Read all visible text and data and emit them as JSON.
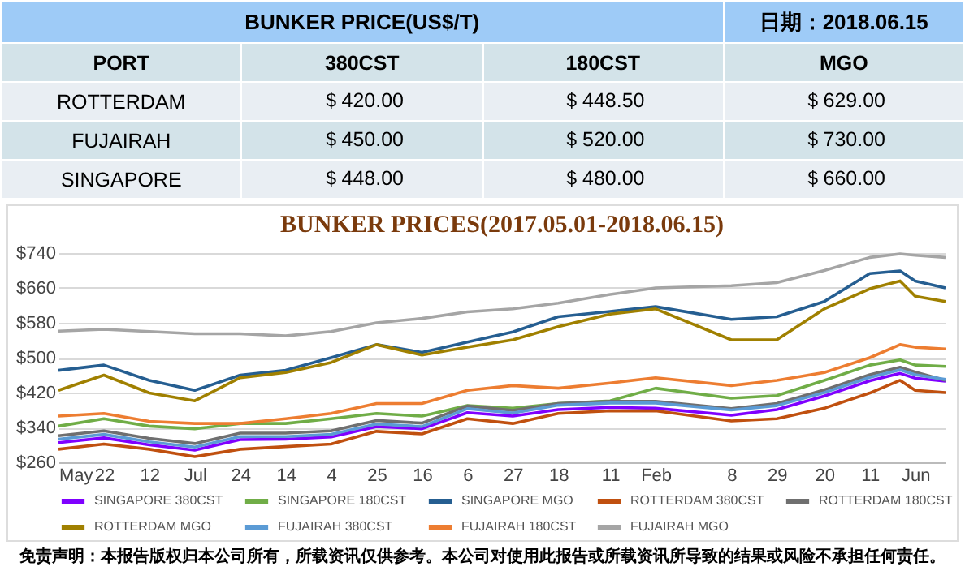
{
  "chart_data": [
    {
      "type": "other",
      "title": "BUNKER  PRICE(US$/T)",
      "subtitle": "日期：2018.06.15",
      "xlabel": "PORT",
      "categories": [
        "ROTTERDAM",
        "FUJAIRAH",
        "SINGAPORE"
      ],
      "series": [
        {
          "name": "380CST",
          "colors": [
            "#e9eef3",
            "#d3e3e9",
            "#e9eef3"
          ],
          "values": [
            420,
            450,
            448
          ],
          "value_labels": [
            "＄420.00",
            "＄450.00",
            "＄448.00"
          ]
        },
        {
          "name": "180CST",
          "colors": [
            "#e9eef3",
            "#d3e3e9",
            "#e9eef3"
          ],
          "values": [
            448.5,
            520,
            480
          ],
          "value_labels": [
            "＄448.50",
            "＄520.00",
            "＄480.00"
          ]
        },
        {
          "name": "MGO",
          "colors": [
            "#e9eef3",
            "#d3e3e9",
            "#e9eef3"
          ],
          "values": [
            629,
            730,
            660
          ],
          "value_labels": [
            "＄629.00",
            "＄730.00",
            "＄660.00"
          ]
        }
      ]
    },
    {
      "type": "line",
      "title": "BUNKER PRICES(2017.05.01-2018.06.15)",
      "x": [
        "2017-05-01",
        "2017-05-22",
        "2017-06-12",
        "2017-07-03",
        "2017-07-24",
        "2017-08-14",
        "2017-09-04",
        "2017-09-25",
        "2017-10-16",
        "2017-11-06",
        "2017-11-27",
        "2017-12-18",
        "2018-01-11",
        "2018-02-01",
        "2018-03-08",
        "2018-03-29",
        "2018-04-20",
        "2018-05-11",
        "2018-05-25",
        "2018-06-01",
        "2018-06-15"
      ],
      "series": [
        {
          "name": "SINGAPORE 380CST",
          "color": "#7f00ff",
          "values": [
            305,
            316,
            300,
            288,
            312,
            313,
            318,
            342,
            337,
            374,
            366,
            381,
            386,
            384,
            368,
            381,
            412,
            447,
            464,
            453,
            446
          ]
        },
        {
          "name": "SINGAPORE 180CST",
          "color": "#70ad47",
          "values": [
            343,
            360,
            343,
            337,
            349,
            349,
            360,
            372,
            366,
            390,
            384,
            395,
            401,
            430,
            407,
            413,
            448,
            483,
            495,
            483,
            480
          ]
        },
        {
          "name": "SINGAPORE MGO",
          "color": "#255e91",
          "values": [
            471,
            483,
            448,
            425,
            460,
            471,
            500,
            530,
            512,
            536,
            559,
            594,
            606,
            617,
            588,
            594,
            629,
            693,
            699,
            676,
            660
          ]
        },
        {
          "name": "ROTTERDAM 380CST",
          "color": "#c0500f",
          "values": [
            290,
            302,
            290,
            273,
            290,
            296,
            302,
            331,
            325,
            360,
            349,
            372,
            378,
            378,
            355,
            360,
            384,
            419,
            448,
            425,
            420
          ]
        },
        {
          "name": "ROTTERDAM 180CST",
          "color": "#6f6f6f",
          "values": [
            321,
            332,
            315,
            303,
            327,
            327,
            332,
            356,
            350,
            389,
            379,
            395,
            400,
            400,
            383,
            395,
            426,
            461,
            478,
            467,
            448
          ]
        },
        {
          "name": "ROTTERDAM MGO",
          "color": "#a08000",
          "values": [
            425,
            460,
            419,
            401,
            454,
            466,
            489,
            530,
            506,
            524,
            541,
            571,
            600,
            612,
            541,
            541,
            612,
            658,
            676,
            641,
            629
          ]
        },
        {
          "name": "FUJAIRAH 380CST",
          "color": "#5b9bd5",
          "values": [
            313,
            324,
            307,
            295,
            319,
            319,
            324,
            348,
            342,
            383,
            373,
            391,
            396,
            396,
            380,
            390,
            420,
            455,
            472,
            461,
            450
          ]
        },
        {
          "name": "FUJAIRAH 180CST",
          "color": "#ed7d31",
          "values": [
            366,
            372,
            354,
            349,
            349,
            360,
            372,
            395,
            395,
            425,
            436,
            430,
            442,
            454,
            436,
            448,
            466,
            500,
            530,
            524,
            520
          ]
        },
        {
          "name": "FUJAIRAH MGO",
          "color": "#a5a5a5",
          "values": [
            561,
            565,
            560,
            555,
            555,
            550,
            560,
            580,
            590,
            605,
            612,
            625,
            645,
            660,
            665,
            672,
            700,
            730,
            738,
            735,
            730
          ]
        }
      ],
      "xlim": [
        "2017-05-01",
        "2018-06-15"
      ],
      "xticks": [
        {
          "value": "2017-05-01",
          "label": "May"
        },
        {
          "value": "2017-05-22",
          "label": "22"
        },
        {
          "value": "2017-06-12",
          "label": "12"
        },
        {
          "value": "2017-07-03",
          "label": "Jul"
        },
        {
          "value": "2017-07-24",
          "label": "24"
        },
        {
          "value": "2017-08-14",
          "label": "14"
        },
        {
          "value": "2017-09-04",
          "label": "4"
        },
        {
          "value": "2017-09-25",
          "label": "25"
        },
        {
          "value": "2017-10-16",
          "label": "16"
        },
        {
          "value": "2017-11-06",
          "label": "6"
        },
        {
          "value": "2017-11-27",
          "label": "27"
        },
        {
          "value": "2017-12-18",
          "label": "18"
        },
        {
          "value": "2018-01-11",
          "label": "11"
        },
        {
          "value": "2018-02-01",
          "label": "Feb"
        },
        {
          "value": "2018-03-08",
          "label": "8"
        },
        {
          "value": "2018-03-29",
          "label": "29"
        },
        {
          "value": "2018-04-20",
          "label": "20"
        },
        {
          "value": "2018-05-11",
          "label": "11"
        },
        {
          "value": "2018-06-01",
          "label": "Jun"
        }
      ],
      "ylim": [
        260,
        740
      ],
      "yticks": [
        {
          "value": 260,
          "label": "$260"
        },
        {
          "value": 340,
          "label": "$340"
        },
        {
          "value": 420,
          "label": "$420"
        },
        {
          "value": 500,
          "label": "$500"
        },
        {
          "value": 580,
          "label": "$580"
        },
        {
          "value": 660,
          "label": "$660"
        },
        {
          "value": 740,
          "label": "$740"
        }
      ],
      "grid": "y",
      "legend": "bottom",
      "annotations": [
        "免责声明：本报告版权归本公司所有，所载资讯仅供参考。本公司对使用此报告或所载资讯所导致的结果或风险不承担任何责任。"
      ]
    }
  ]
}
